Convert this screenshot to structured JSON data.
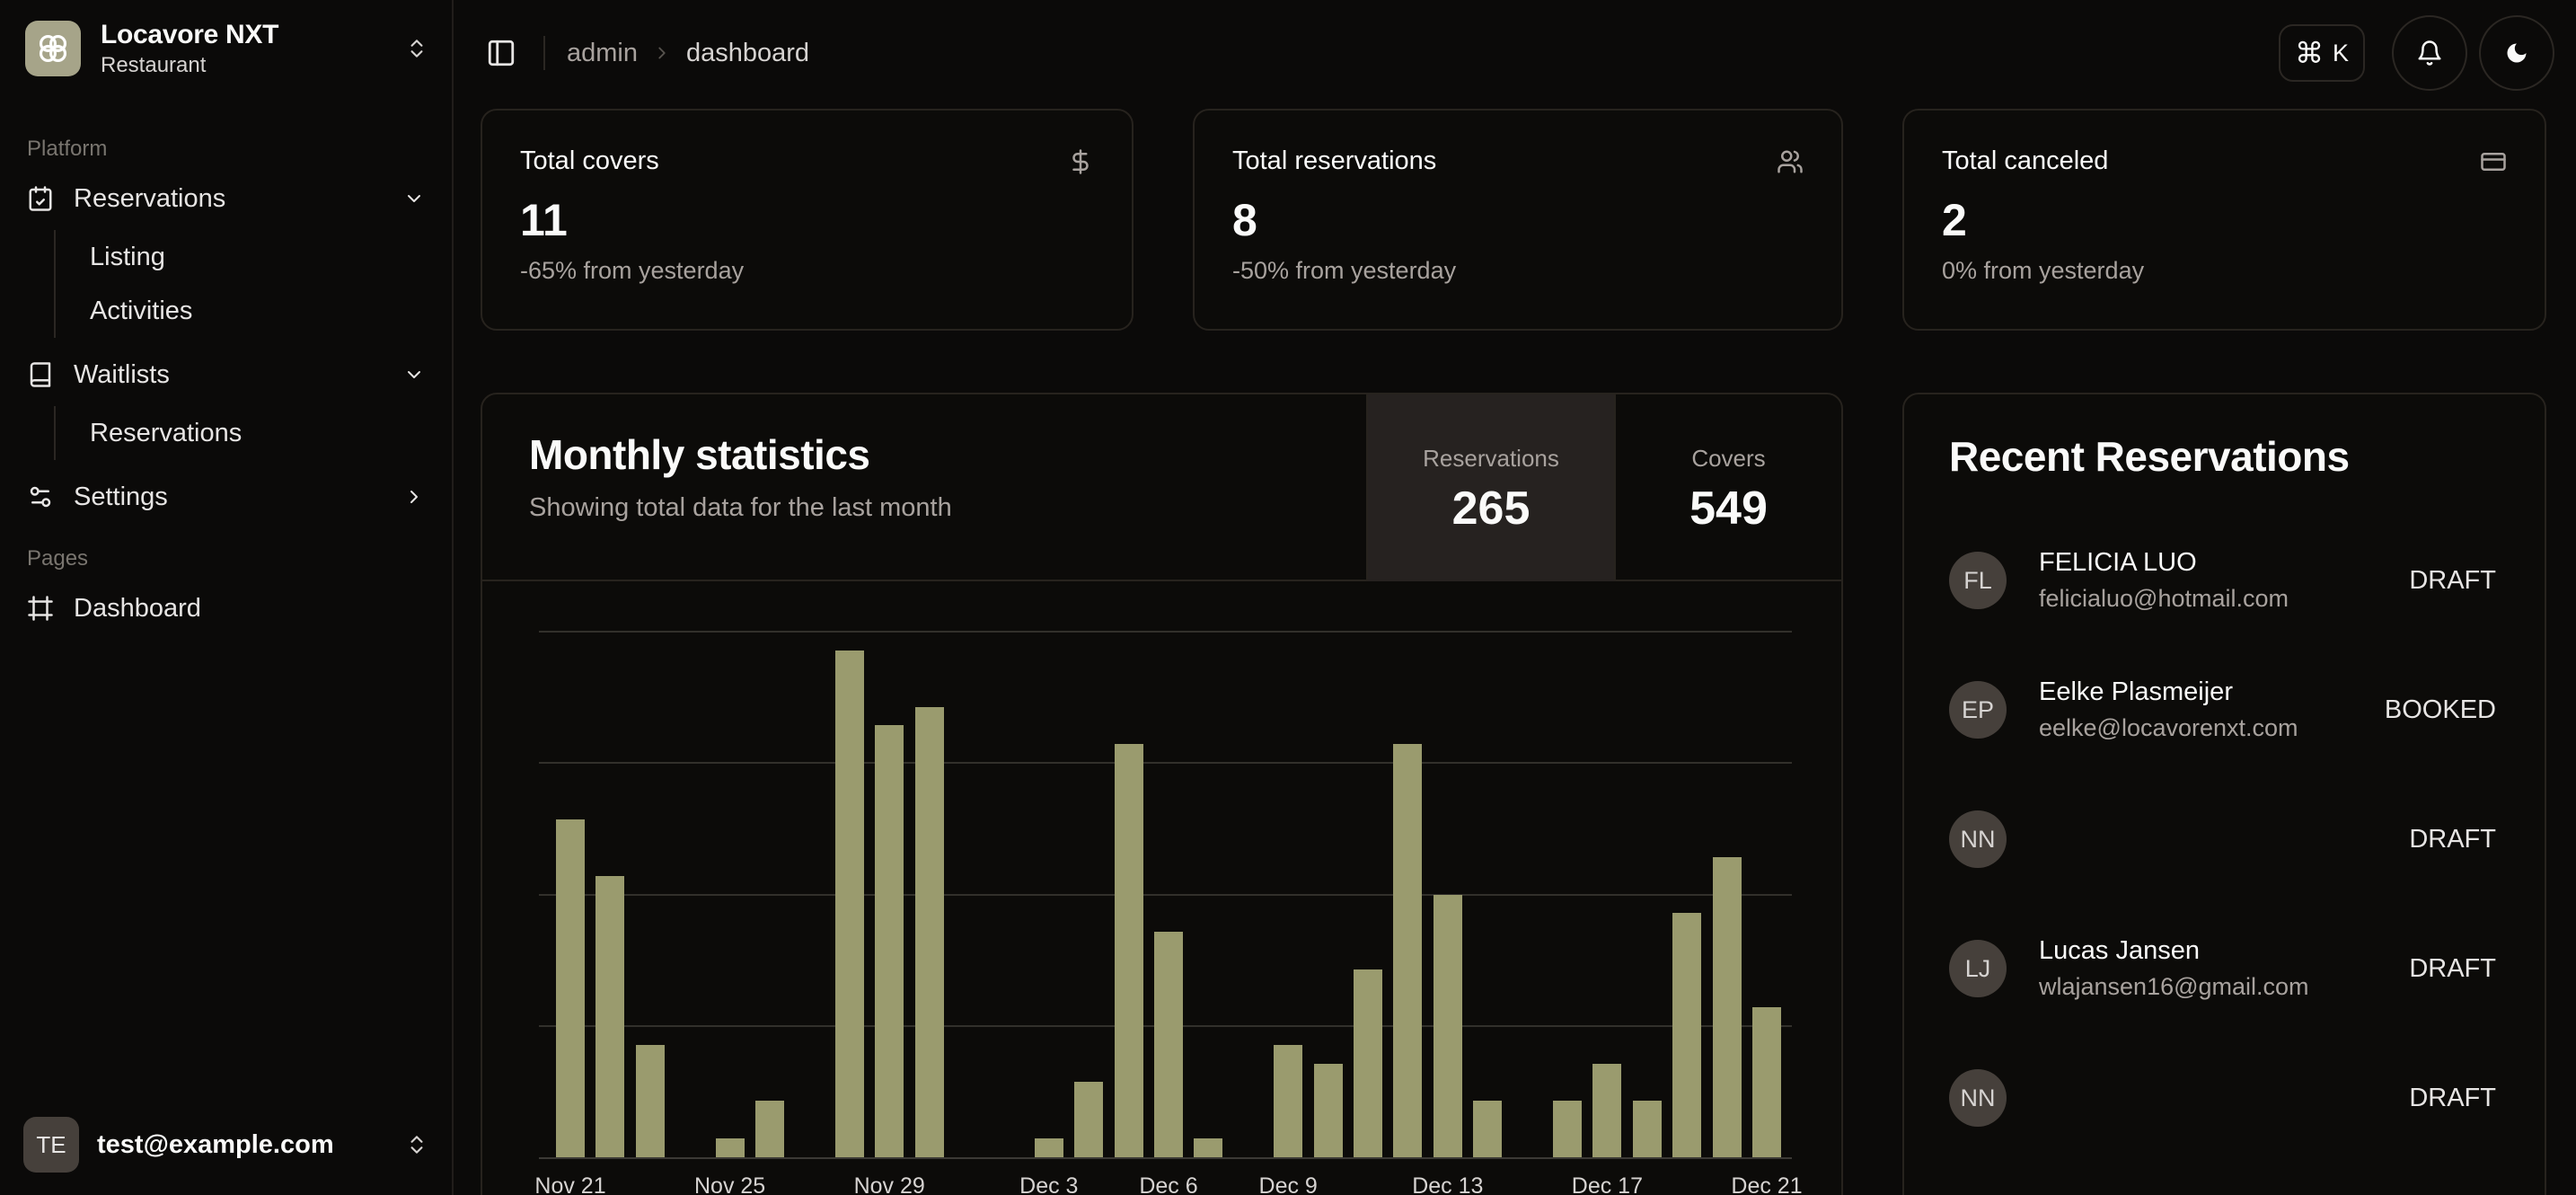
{
  "sidebar": {
    "workspace": {
      "name": "Locavore NXT",
      "type": "Restaurant",
      "logo_icon": "clover-icon"
    },
    "groups": [
      {
        "label": "Platform",
        "items": [
          {
            "label": "Reservations",
            "icon": "calendar-check-icon",
            "chevron": "down",
            "children": [
              "Listing",
              "Activities"
            ]
          },
          {
            "label": "Waitlists",
            "icon": "book-icon",
            "chevron": "down",
            "children": [
              "Reservations"
            ]
          },
          {
            "label": "Settings",
            "icon": "settings-icon",
            "chevron": "right",
            "children": []
          }
        ]
      },
      {
        "label": "Pages",
        "items": [
          {
            "label": "Dashboard",
            "icon": "frame-icon",
            "chevron": null,
            "children": []
          }
        ]
      }
    ],
    "user": {
      "initials": "TE",
      "email": "test@example.com"
    }
  },
  "topbar": {
    "breadcrumb": {
      "root": "admin",
      "page": "dashboard"
    },
    "shortcut": {
      "modifier": "⌘",
      "key": "K"
    }
  },
  "stat_cards": [
    {
      "title": "Total covers",
      "icon": "dollar-sign-icon",
      "value": "11",
      "delta": "-65% from yesterday"
    },
    {
      "title": "Total reservations",
      "icon": "users-icon",
      "value": "8",
      "delta": "-50% from yesterday"
    },
    {
      "title": "Total canceled",
      "icon": "credit-card-icon",
      "value": "2",
      "delta": "0% from yesterday"
    }
  ],
  "monthly": {
    "title": "Monthly statistics",
    "subtitle": "Showing total data for the last month",
    "tabs": [
      {
        "label": "Reservations",
        "value": "265",
        "active": true
      },
      {
        "label": "Covers",
        "value": "549",
        "active": false
      }
    ]
  },
  "chart_data": {
    "type": "bar",
    "title": "Monthly statistics",
    "x": [
      "Nov 21",
      "Nov 22",
      "Nov 23",
      "Nov 24",
      "Nov 25",
      "Nov 26",
      "Nov 27",
      "Nov 28",
      "Nov 29",
      "Nov 30",
      "Dec 1",
      "Dec 2",
      "Dec 3",
      "Dec 4",
      "Dec 5",
      "Dec 6",
      "Dec 7",
      "Dec 8",
      "Dec 9",
      "Dec 10",
      "Dec 11",
      "Dec 12",
      "Dec 13",
      "Dec 14",
      "Dec 15",
      "Dec 16",
      "Dec 17",
      "Dec 18",
      "Dec 19",
      "Dec 20",
      "Dec 21"
    ],
    "series": [
      {
        "name": "reservations",
        "values": [
          18,
          15,
          6,
          0,
          1,
          3,
          0,
          27,
          23,
          24,
          0,
          0,
          1,
          4,
          22,
          12,
          1,
          0,
          6,
          5,
          10,
          22,
          14,
          3,
          0,
          3,
          5,
          3,
          13,
          16,
          8
        ]
      }
    ],
    "totals": {
      "reservations": 265,
      "covers": 549
    },
    "ylim": [
      0,
      28
    ],
    "gridline_values": [
      7,
      14,
      21,
      28
    ],
    "grid": "horizontal-only",
    "legend": "none",
    "xlabel": "",
    "ylabel": "",
    "visible_x_ticks": [
      {
        "label": "Nov 21",
        "index": 0
      },
      {
        "label": "Nov 25",
        "index": 4
      },
      {
        "label": "Nov 29",
        "index": 8
      },
      {
        "label": "Dec 3",
        "index": 12
      },
      {
        "label": "Dec 6",
        "index": 15
      },
      {
        "label": "Dec 9",
        "index": 18
      },
      {
        "label": "Dec 13",
        "index": 22
      },
      {
        "label": "Dec 17",
        "index": 26
      },
      {
        "label": "Dec 21",
        "index": 30
      }
    ],
    "bar_color": "#9a9b6e"
  },
  "recent": {
    "title": "Recent Reservations",
    "rows": [
      {
        "initials": "FL",
        "name": "FELICIA LUO",
        "email": "felicialuo@hotmail.com",
        "status": "DRAFT"
      },
      {
        "initials": "EP",
        "name": "Eelke Plasmeijer",
        "email": "eelke@locavorenxt.com",
        "status": "BOOKED"
      },
      {
        "initials": "NN",
        "name": "",
        "email": "",
        "status": "DRAFT"
      },
      {
        "initials": "LJ",
        "name": "Lucas Jansen",
        "email": "wlajansen16@gmail.com",
        "status": "DRAFT"
      },
      {
        "initials": "NN",
        "name": "",
        "email": "",
        "status": "DRAFT"
      }
    ]
  },
  "colors": {
    "accent_bar": "#9a9b6e",
    "logo_tile": "#a6a489",
    "avatar_bg": "#46403b",
    "tab_active_bg": "#262220",
    "page_bg": "#0b0a09",
    "card_border": "#27231e",
    "text_primary": "#fafaf9",
    "text_muted": "#a8a29e"
  }
}
